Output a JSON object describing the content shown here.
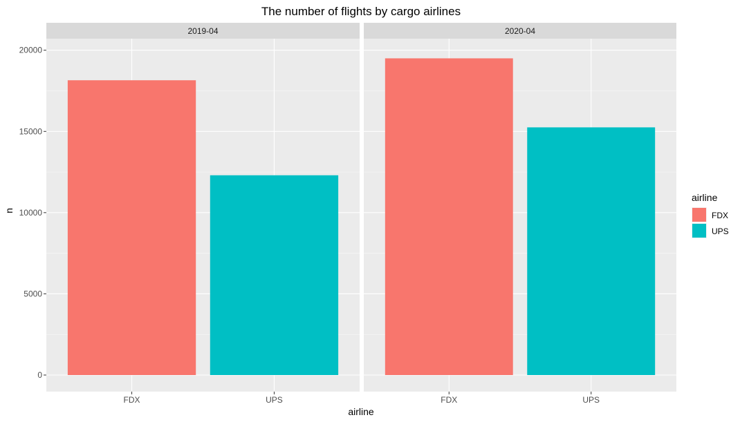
{
  "chart_data": {
    "type": "bar",
    "title": "The number of flights by cargo airlines",
    "xlabel": "airline",
    "ylabel": "n",
    "categories": [
      "FDX",
      "UPS"
    ],
    "facets": [
      {
        "label": "2019-04",
        "values": [
          18150,
          12300
        ]
      },
      {
        "label": "2020-04",
        "values": [
          19500,
          15250
        ]
      }
    ],
    "ylim": [
      0,
      20200
    ],
    "yticks": [
      0,
      5000,
      10000,
      15000,
      20000
    ],
    "grid": true,
    "legend": {
      "title": "airline",
      "position": "right",
      "items": [
        {
          "name": "FDX",
          "color": "#F8766D"
        },
        {
          "name": "UPS",
          "color": "#00BFC4"
        }
      ]
    },
    "colors": {
      "FDX": "#F8766D",
      "UPS": "#00BFC4",
      "panel_background": "#EBEBEB",
      "strip_background": "#D9D9D9",
      "grid": "#FFFFFF"
    }
  }
}
